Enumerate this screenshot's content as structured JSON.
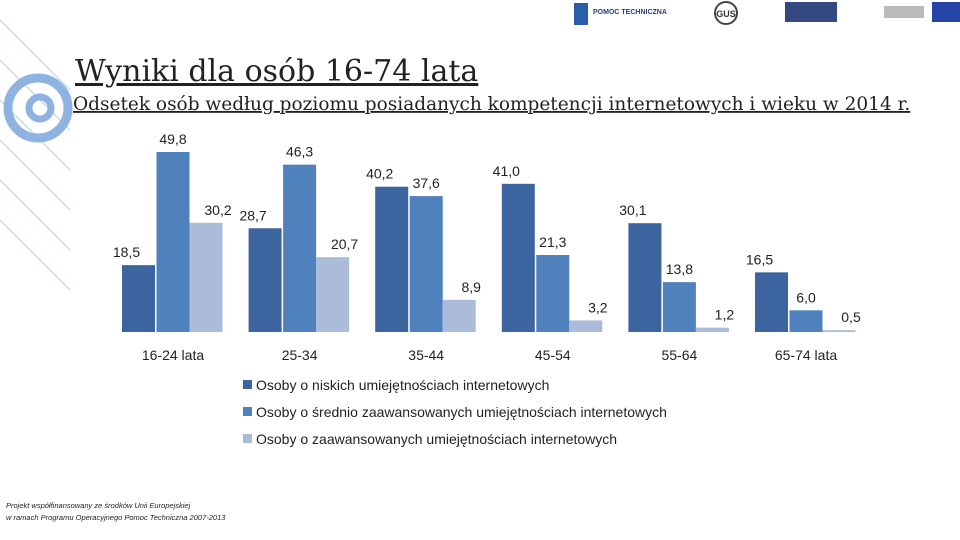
{
  "header": {
    "title": "Wyniki dla osób 16-74 lata",
    "logos": [
      "POMOC TECHNICZNA",
      "GUS"
    ]
  },
  "chart_data": {
    "type": "bar",
    "title": "Odsetek osób według poziomu posiadanych kompetencji internetowych i wieku w 2014 r.",
    "categories": [
      "16-24 lata",
      "25-34",
      "35-44",
      "45-54",
      "55-64",
      "65-74 lata"
    ],
    "series": [
      {
        "name": "Osoby o niskich umiejętnościach internetowych",
        "color": "#3c65a0",
        "values": [
          18.5,
          28.7,
          40.2,
          41.0,
          30.1,
          16.5
        ],
        "value_labels": [
          "18,5",
          "28,7",
          "40,2",
          "41,0",
          "30,1",
          "16,5"
        ]
      },
      {
        "name": "Osoby o średnio zaawansowanych umiejętnościach internetowych",
        "color": "#4f81bd",
        "values": [
          49.8,
          46.3,
          37.6,
          21.3,
          13.8,
          6.0
        ],
        "value_labels": [
          "49,8",
          "46,3",
          "37,6",
          "21,3",
          "13,8",
          "6,0"
        ]
      },
      {
        "name": "Osoby o zaawansowanych umiejętnościach internetowych",
        "color": "#aabcd9",
        "values": [
          30.2,
          20.7,
          8.9,
          3.2,
          1.2,
          0.5
        ],
        "value_labels": [
          "30,2",
          "20,7",
          "8,9",
          "3,2",
          "1,2",
          "0,5"
        ]
      }
    ],
    "legend": "bottom"
  },
  "footer": {
    "lines": [
      "Projekt współfinansowany ze środków Unii Europejskiej",
      "w ramach Programu Operacyjnego Pomoc Techniczna 2007-2013"
    ]
  }
}
